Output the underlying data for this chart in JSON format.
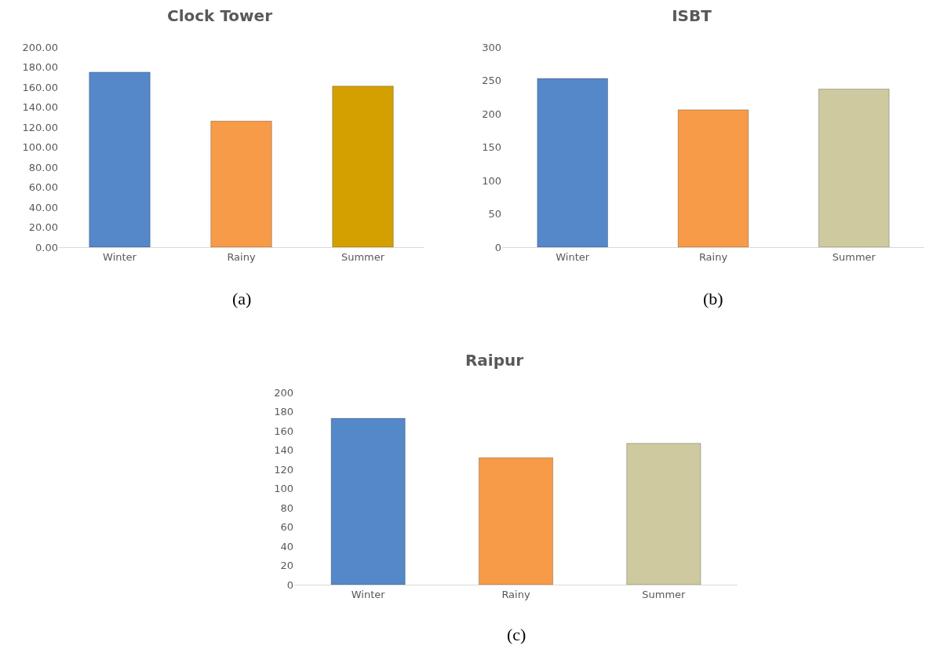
{
  "chart_data": [
    {
      "type": "bar",
      "title": "Clock Tower",
      "categories": [
        "Winter",
        "Rainy",
        "Summer"
      ],
      "values": [
        175,
        126,
        161
      ],
      "colors": [
        "#5488c8",
        "#f79b48",
        "#d4a000"
      ],
      "ylim": [
        0,
        200
      ],
      "yticks": [
        {
          "value": 0,
          "label": "0.00"
        },
        {
          "value": 20,
          "label": "20.00"
        },
        {
          "value": 40,
          "label": "40.00"
        },
        {
          "value": 60,
          "label": "60.00"
        },
        {
          "value": 80,
          "label": "80.00"
        },
        {
          "value": 100,
          "label": "100.00"
        },
        {
          "value": 120,
          "label": "120.00"
        },
        {
          "value": 140,
          "label": "140.00"
        },
        {
          "value": 160,
          "label": "160.00"
        },
        {
          "value": 180,
          "label": "180.00"
        },
        {
          "value": 200,
          "label": "200.00"
        }
      ],
      "grid": false,
      "annotations": [
        "(a)"
      ]
    },
    {
      "type": "bar",
      "title": "ISBT",
      "categories": [
        "Winter",
        "Rainy",
        "Summer"
      ],
      "values": [
        253,
        206,
        237
      ],
      "colors": [
        "#5488c8",
        "#f79b48",
        "#cfc9a0"
      ],
      "ylim": [
        0,
        300
      ],
      "yticks": [
        0,
        50,
        100,
        150,
        200,
        250,
        300
      ],
      "grid": false,
      "annotations": [
        "(b)"
      ]
    },
    {
      "type": "bar",
      "title": "Raipur",
      "categories": [
        "Winter",
        "Rainy",
        "Summer"
      ],
      "values": [
        173,
        132,
        147
      ],
      "colors": [
        "#5488c8",
        "#f79b48",
        "#cfc9a0"
      ],
      "ylim": [
        0,
        200
      ],
      "yticks": [
        0,
        20,
        40,
        60,
        80,
        100,
        120,
        140,
        160,
        180,
        200
      ],
      "grid": false,
      "annotations": [
        "(c)"
      ]
    }
  ]
}
